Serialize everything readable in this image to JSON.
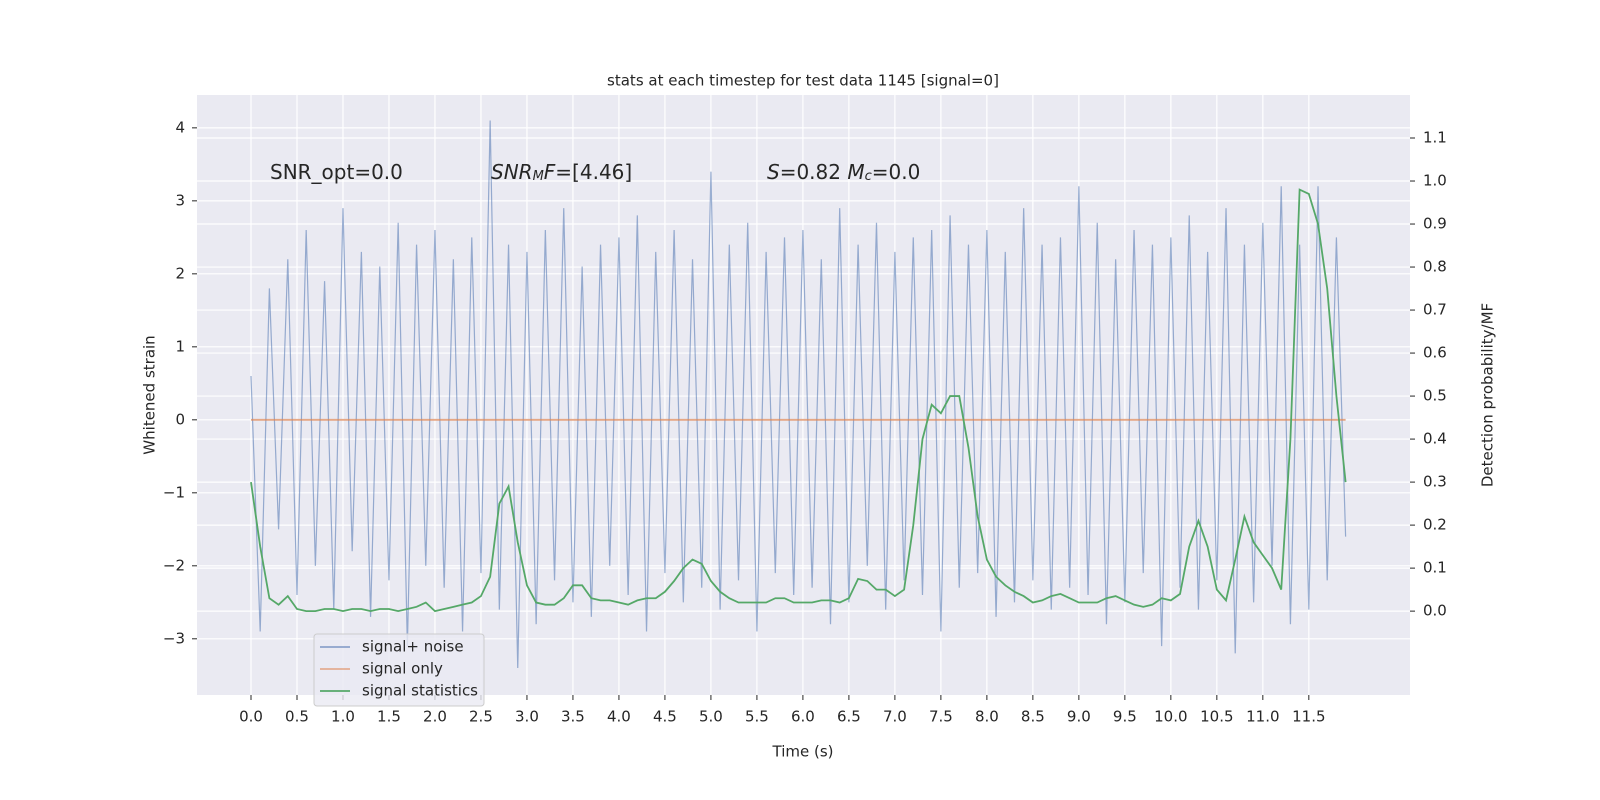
{
  "chart_data": {
    "type": "line",
    "title": "stats at each timestep for test data 1145 [signal=0]",
    "xlabel": "Time (s)",
    "ylabel": "Whitened strain",
    "y2label": "Detection probability/MF",
    "annotations": [
      [
        {
          "text": "SNR_opt=0.0"
        }
      ],
      [
        {
          "text": "SNR",
          "italic": true
        },
        {
          "text": "M",
          "italic": true,
          "sub": true
        },
        {
          "text": "F",
          "italic": true
        },
        {
          "text": "=[4.46]"
        }
      ],
      [
        {
          "text": "S",
          "italic": true
        },
        {
          "text": "=0.82   "
        },
        {
          "text": "M",
          "italic": true
        },
        {
          "text": "c",
          "italic": true,
          "sub": true
        },
        {
          "text": "=0.0"
        }
      ]
    ],
    "x": [
      0,
      0.1,
      0.2,
      0.3,
      0.4,
      0.5,
      0.6,
      0.7,
      0.8,
      0.9,
      1,
      1.1,
      1.2,
      1.3,
      1.4,
      1.5,
      1.6,
      1.7,
      1.8,
      1.9,
      2,
      2.1,
      2.2,
      2.3,
      2.4,
      2.5,
      2.6,
      2.7,
      2.8,
      2.9,
      3,
      3.1,
      3.2,
      3.3,
      3.4,
      3.5,
      3.6,
      3.7,
      3.8,
      3.9,
      4,
      4.1,
      4.2,
      4.3,
      4.4,
      4.5,
      4.6,
      4.7,
      4.8,
      4.9,
      5,
      5.1,
      5.2,
      5.3,
      5.4,
      5.5,
      5.6,
      5.7,
      5.8,
      5.9,
      6,
      6.1,
      6.2,
      6.3,
      6.4,
      6.5,
      6.6,
      6.7,
      6.8,
      6.9,
      7,
      7.1,
      7.2,
      7.3,
      7.4,
      7.5,
      7.6,
      7.7,
      7.8,
      7.9,
      8,
      8.1,
      8.2,
      8.3,
      8.4,
      8.5,
      8.6,
      8.7,
      8.8,
      8.9,
      9,
      9.1,
      9.2,
      9.3,
      9.4,
      9.5,
      9.6,
      9.7,
      9.8,
      9.9,
      10,
      10.1,
      10.2,
      10.3,
      10.4,
      10.5,
      10.6,
      10.7,
      10.8,
      10.9,
      11,
      11.1,
      11.2,
      11.3,
      11.4,
      11.5,
      11.6,
      11.7,
      11.8,
      11.9
    ],
    "series": [
      {
        "name": "signal+ noise",
        "color": "#4c72b0",
        "values": [
          0.6,
          -2.9,
          1.8,
          -1.5,
          2.2,
          -2.4,
          2.6,
          -2.0,
          1.9,
          -2.6,
          2.9,
          -1.8,
          2.3,
          -2.7,
          2.1,
          -2.2,
          2.7,
          -3.1,
          2.4,
          -2.0,
          2.6,
          -2.3,
          2.2,
          -2.9,
          2.5,
          -2.1,
          4.1,
          -2.6,
          2.4,
          -3.4,
          2.3,
          -2.8,
          2.6,
          -2.2,
          2.9,
          -2.5,
          2.1,
          -2.7,
          2.4,
          -2.0,
          2.5,
          -2.4,
          2.8,
          -2.9,
          2.3,
          -2.1,
          2.6,
          -2.5,
          2.2,
          -2.3,
          3.4,
          -2.6,
          2.4,
          -2.2,
          2.7,
          -2.9,
          2.3,
          -2.1,
          2.5,
          -2.4,
          2.6,
          -2.3,
          2.2,
          -2.8,
          2.9,
          -2.5,
          2.4,
          -2.0,
          2.7,
          -2.6,
          2.3,
          -2.2,
          2.5,
          -2.4,
          2.6,
          -2.9,
          2.8,
          -2.3,
          2.4,
          -2.1,
          2.6,
          -2.7,
          2.3,
          -2.5,
          2.9,
          -2.2,
          2.4,
          -2.6,
          2.5,
          -2.3,
          3.2,
          -2.4,
          2.7,
          -2.8,
          2.2,
          -2.5,
          2.6,
          -2.1,
          2.4,
          -3.1,
          2.5,
          -2.3,
          2.8,
          -2.6,
          2.3,
          -2.2,
          2.9,
          -3.2,
          2.4,
          -2.5,
          2.7,
          -2.0,
          3.2,
          -2.8,
          2.4,
          -2.6,
          3.2,
          -2.2,
          2.5,
          -1.6
        ]
      },
      {
        "name": "signal only",
        "color": "#dd8452",
        "values": [
          0,
          0,
          0,
          0,
          0,
          0,
          0,
          0,
          0,
          0,
          0,
          0,
          0,
          0,
          0,
          0,
          0,
          0,
          0,
          0,
          0,
          0,
          0,
          0,
          0,
          0,
          0,
          0,
          0,
          0,
          0,
          0,
          0,
          0,
          0,
          0,
          0,
          0,
          0,
          0,
          0,
          0,
          0,
          0,
          0,
          0,
          0,
          0,
          0,
          0,
          0,
          0,
          0,
          0,
          0,
          0,
          0,
          0,
          0,
          0,
          0,
          0,
          0,
          0,
          0,
          0,
          0,
          0,
          0,
          0,
          0,
          0,
          0,
          0,
          0,
          0,
          0,
          0,
          0,
          0,
          0,
          0,
          0,
          0,
          0,
          0,
          0,
          0,
          0,
          0,
          0,
          0,
          0,
          0,
          0,
          0,
          0,
          0,
          0,
          0,
          0,
          0,
          0,
          0,
          0,
          0,
          0,
          0,
          0,
          0,
          0,
          0,
          0,
          0,
          0,
          0,
          0,
          0,
          0,
          0
        ]
      },
      {
        "name": "signal statistics",
        "color": "#55a868",
        "axis": "y2",
        "values": [
          0.3,
          0.15,
          0.03,
          0.015,
          0.035,
          0.005,
          0,
          0,
          0.005,
          0.005,
          0,
          0.005,
          0.005,
          0,
          0.005,
          0.005,
          0,
          0.005,
          0.01,
          0.02,
          0,
          0.005,
          0.01,
          0.015,
          0.02,
          0.035,
          0.08,
          0.25,
          0.29,
          0.16,
          0.06,
          0.02,
          0.015,
          0.015,
          0.03,
          0.06,
          0.06,
          0.03,
          0.025,
          0.025,
          0.02,
          0.015,
          0.025,
          0.03,
          0.03,
          0.045,
          0.07,
          0.1,
          0.12,
          0.11,
          0.07,
          0.045,
          0.03,
          0.02,
          0.02,
          0.02,
          0.02,
          0.03,
          0.03,
          0.02,
          0.02,
          0.02,
          0.025,
          0.025,
          0.02,
          0.03,
          0.075,
          0.07,
          0.05,
          0.05,
          0.035,
          0.05,
          0.2,
          0.4,
          0.48,
          0.46,
          0.5,
          0.5,
          0.38,
          0.22,
          0.12,
          0.08,
          0.06,
          0.045,
          0.035,
          0.02,
          0.025,
          0.035,
          0.04,
          0.03,
          0.02,
          0.02,
          0.02,
          0.03,
          0.035,
          0.025,
          0.015,
          0.01,
          0.015,
          0.03,
          0.025,
          0.04,
          0.15,
          0.21,
          0.15,
          0.05,
          0.025,
          0.12,
          0.22,
          0.16,
          0.13,
          0.1,
          0.05,
          0.4,
          0.98,
          0.97,
          0.9,
          0.75,
          0.5,
          0.3
        ]
      }
    ],
    "xlim": [
      -0.587,
      12.6
    ],
    "ylim": [
      -3.77,
      4.45
    ],
    "y2lim": [
      -0.195,
      1.2
    ],
    "xticks": [
      {
        "value": 0,
        "label": "0.0"
      },
      0.5,
      {
        "value": 1,
        "label": "1.0"
      },
      1.5,
      {
        "value": 2,
        "label": "2.0"
      },
      2.5,
      {
        "value": 3,
        "label": "3.0"
      },
      3.5,
      {
        "value": 4,
        "label": "4.0"
      },
      4.5,
      {
        "value": 5,
        "label": "5.0"
      },
      5.5,
      {
        "value": 6,
        "label": "6.0"
      },
      6.5,
      {
        "value": 7,
        "label": "7.0"
      },
      7.5,
      {
        "value": 8,
        "label": "8.0"
      },
      8.5,
      {
        "value": 9,
        "label": "9.0"
      },
      9.5,
      {
        "value": 10,
        "label": "10.0"
      },
      10.5,
      {
        "value": 11,
        "label": "11.0"
      },
      11.5
    ],
    "yticks": [
      {
        "value": -3,
        "label": "−3"
      },
      {
        "value": -2,
        "label": "−2"
      },
      {
        "value": -1,
        "label": "−1"
      },
      0,
      1,
      2,
      3,
      4
    ],
    "y2ticks": [
      {
        "value": 0,
        "label": "0.0"
      },
      0.1,
      0.2,
      0.3,
      0.4,
      0.5,
      0.6,
      0.7,
      0.8,
      0.9,
      {
        "value": 1,
        "label": "1.0"
      },
      1.1
    ],
    "grid": true,
    "legend": "lower left"
  }
}
